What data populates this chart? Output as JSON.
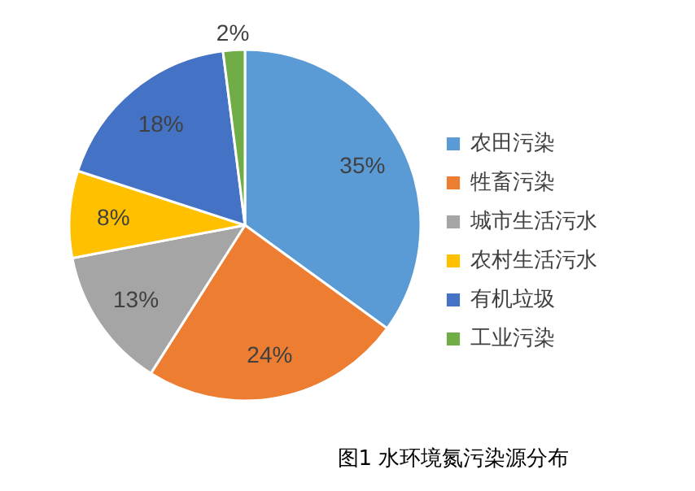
{
  "chart_data": {
    "type": "pie",
    "categories": [
      "农田污染",
      "牲畜污染",
      "城市生活污水",
      "农村生活污水",
      "有机垃圾",
      "工业污染"
    ],
    "values": [
      35,
      24,
      13,
      8,
      18,
      2
    ],
    "colors": [
      "#5b9bd5",
      "#ed7d31",
      "#a5a5a5",
      "#ffc000",
      "#4472c4",
      "#70ad47"
    ],
    "value_labels": [
      "35%",
      "24%",
      "13%",
      "8%",
      "18%",
      "2%"
    ],
    "legend": "right",
    "annotations": [
      "图1 水环境氮污染源分布"
    ]
  }
}
